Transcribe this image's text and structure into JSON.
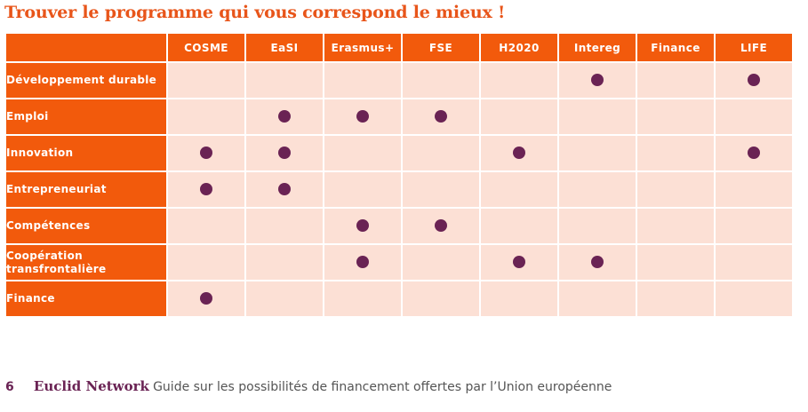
{
  "title": "Trouver le programme qui vous correspond le mieux !",
  "table": {
    "columns": [
      "COSME",
      "EaSI",
      "Erasmus+",
      "FSE",
      "H2020",
      "Intereg",
      "Finance",
      "LIFE"
    ],
    "rows": [
      {
        "label": "Développement durable",
        "marks": [
          false,
          false,
          false,
          false,
          false,
          true,
          false,
          true
        ]
      },
      {
        "label": "Emploi",
        "marks": [
          false,
          true,
          true,
          true,
          false,
          false,
          false,
          false
        ]
      },
      {
        "label": "Innovation",
        "marks": [
          true,
          true,
          false,
          false,
          true,
          false,
          false,
          true
        ]
      },
      {
        "label": "Entrepreneuriat",
        "marks": [
          true,
          true,
          false,
          false,
          false,
          false,
          false,
          false
        ]
      },
      {
        "label": "Compétences",
        "marks": [
          false,
          false,
          true,
          true,
          false,
          false,
          false,
          false
        ]
      },
      {
        "label": "Coopération transfrontalière",
        "marks": [
          false,
          false,
          true,
          false,
          true,
          true,
          false,
          false
        ]
      },
      {
        "label": "Finance",
        "marks": [
          true,
          false,
          false,
          false,
          false,
          false,
          false,
          false
        ]
      }
    ]
  },
  "footer": {
    "page_number": "6",
    "brand": "Euclid Network",
    "subtitle": "Guide sur les possibilités de financement offertes par l’Union européenne"
  },
  "colors": {
    "accent_orange": "#f25a0c",
    "cell_background": "#fce0d5",
    "dot_purple": "#6a2354"
  }
}
